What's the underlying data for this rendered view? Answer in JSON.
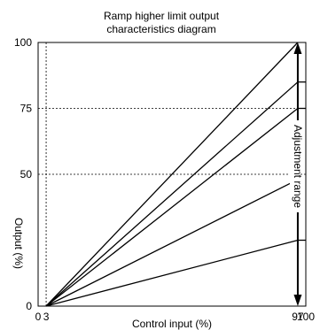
{
  "chart_data": {
    "type": "line",
    "title": [
      "Ramp higher limit output",
      "characteristics diagram"
    ],
    "xlabel": "Control input (%)",
    "ylabel": "Output (%)",
    "xlim": [
      0,
      100
    ],
    "ylim": [
      0,
      100
    ],
    "x_ticks": [
      {
        "value": 0,
        "label": "0"
      },
      {
        "value": 3,
        "label": "3"
      },
      {
        "value": 97,
        "label": "97"
      },
      {
        "value": 100,
        "label": "100"
      }
    ],
    "y_ticks": [
      {
        "value": 0,
        "label": "0"
      },
      {
        "value": 50,
        "label": "50"
      },
      {
        "value": 75,
        "label": "75"
      },
      {
        "value": 100,
        "label": "100"
      }
    ],
    "gridlines": {
      "horizontal": [
        50,
        75
      ],
      "vertical": [
        3
      ]
    },
    "series": [
      {
        "x": [
          3,
          97
        ],
        "y": [
          0,
          100
        ]
      },
      {
        "x": [
          3,
          97
        ],
        "y": [
          0,
          85
        ]
      },
      {
        "x": [
          3,
          97
        ],
        "y": [
          0,
          75
        ]
      },
      {
        "x": [
          3,
          97
        ],
        "y": [
          0,
          48
        ]
      },
      {
        "x": [
          3,
          97
        ],
        "y": [
          0,
          25
        ]
      }
    ],
    "setting_marks": [
      85,
      75,
      25
    ],
    "annotation": {
      "text": "Adjustment range",
      "x": 97,
      "y_range": [
        0,
        100
      ]
    }
  }
}
